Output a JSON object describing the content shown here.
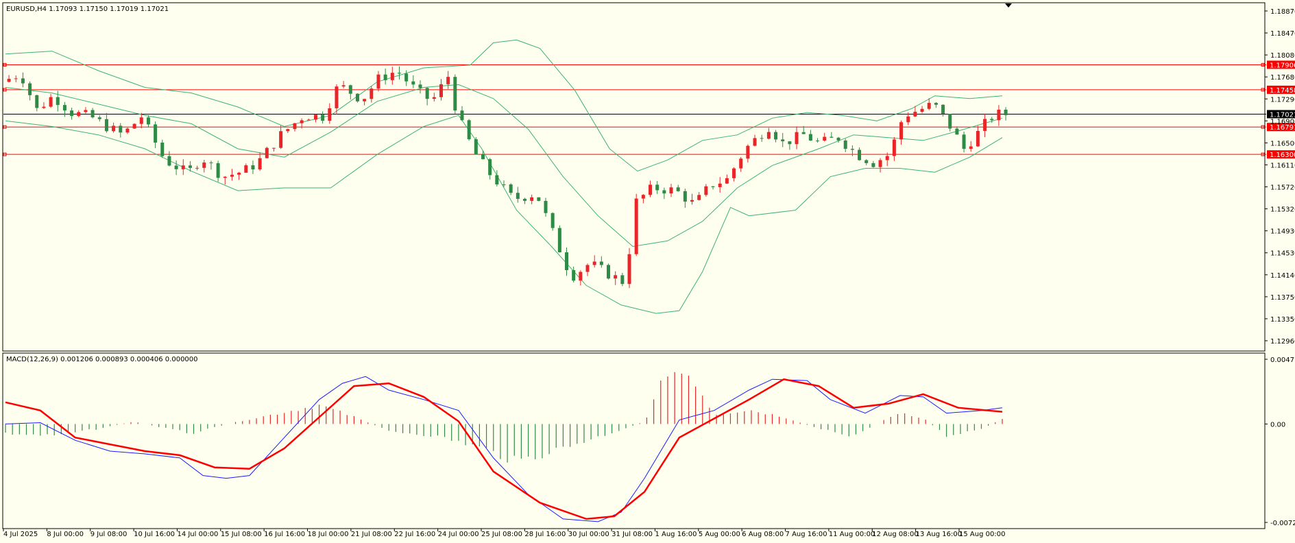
{
  "colors": {
    "background": "#fffff0",
    "frame": "#000000",
    "bull_candle": "#e8262a",
    "bear_candle": "#2e8b46",
    "bollinger": "#3cb371",
    "level_line": "#ff0000",
    "price_line": "#000000",
    "macd_line": "#1a1aff",
    "signal_line": "#ff0000",
    "hist_up": "#e8262a",
    "hist_down": "#2e8b46",
    "label_text": "#ffffff"
  },
  "main_panel": {
    "header": "EURUSD,H4  1.17093 1.17150 1.17019 1.17021",
    "price_axis_ticks": [
      "1.18870",
      "1.18470",
      "1.18080",
      "1.17680",
      "1.17290",
      "1.16900",
      "1.16500",
      "1.16110",
      "1.15720",
      "1.15320",
      "1.14930",
      "1.14530",
      "1.14140",
      "1.13750",
      "1.13350",
      "1.12960"
    ],
    "current_price": "1.17021",
    "levels": [
      "1.17906",
      "1.17458",
      "1.16791",
      "1.16300"
    ]
  },
  "macd_panel": {
    "header": "MACD(12,26,9) 0.001206 0.000893 0.000406 0.000000",
    "axis_ticks": [
      "0.004774",
      "0.00",
      "-0.007257"
    ]
  },
  "time_axis": {
    "labels": [
      "4 Jul 2025",
      "8 Jul 00:00",
      "9 Jul 08:00",
      "10 Jul 16:00",
      "14 Jul 00:00",
      "15 Jul 08:00",
      "16 Jul 16:00",
      "18 Jul 00:00",
      "21 Jul 08:00",
      "22 Jul 16:00",
      "24 Jul 00:00",
      "25 Jul 08:00",
      "28 Jul 16:00",
      "30 Jul 00:00",
      "31 Jul 08:00",
      "1 Aug 16:00",
      "5 Aug 00:00",
      "6 Aug 08:00",
      "7 Aug 16:00",
      "11 Aug 00:00",
      "12 Aug 08:00",
      "13 Aug 16:00",
      "15 Aug 00:00"
    ]
  },
  "chart_data": {
    "type": "candlestick",
    "symbol": "EURUSD",
    "timeframe": "H4",
    "price_range": [
      1.1296,
      1.1887
    ],
    "macd_range": [
      -0.007257,
      0.004774
    ],
    "close_path": [
      {
        "x": 0,
        "y": 1.176
      },
      {
        "x": 8,
        "y": 1.1775
      },
      {
        "x": 15,
        "y": 1.171
      },
      {
        "x": 22,
        "y": 1.1735
      },
      {
        "x": 30,
        "y": 1.1705
      },
      {
        "x": 38,
        "y": 1.1698
      },
      {
        "x": 45,
        "y": 1.168
      },
      {
        "x": 52,
        "y": 1.1665
      },
      {
        "x": 60,
        "y": 1.1698
      },
      {
        "x": 70,
        "y": 1.162
      },
      {
        "x": 80,
        "y": 1.1596
      },
      {
        "x": 86,
        "y": 1.1625
      },
      {
        "x": 95,
        "y": 1.159
      },
      {
        "x": 104,
        "y": 1.16
      },
      {
        "x": 110,
        "y": 1.1615
      },
      {
        "x": 120,
        "y": 1.1665
      },
      {
        "x": 130,
        "y": 1.17
      },
      {
        "x": 138,
        "y": 1.1698
      },
      {
        "x": 145,
        "y": 1.1755
      },
      {
        "x": 155,
        "y": 1.1728
      },
      {
        "x": 162,
        "y": 1.1765
      },
      {
        "x": 170,
        "y": 1.178
      },
      {
        "x": 178,
        "y": 1.1745
      },
      {
        "x": 185,
        "y": 1.1725
      },
      {
        "x": 192,
        "y": 1.177
      },
      {
        "x": 196,
        "y": 1.17
      },
      {
        "x": 203,
        "y": 1.1635
      },
      {
        "x": 210,
        "y": 1.1595
      },
      {
        "x": 220,
        "y": 1.155
      },
      {
        "x": 230,
        "y": 1.156
      },
      {
        "x": 238,
        "y": 1.148
      },
      {
        "x": 245,
        "y": 1.141
      },
      {
        "x": 253,
        "y": 1.1435
      },
      {
        "x": 260,
        "y": 1.1418
      },
      {
        "x": 268,
        "y": 1.14
      },
      {
        "x": 273,
        "y": 1.1545
      },
      {
        "x": 280,
        "y": 1.157
      },
      {
        "x": 290,
        "y": 1.1565
      },
      {
        "x": 298,
        "y": 1.154
      },
      {
        "x": 305,
        "y": 1.1575
      },
      {
        "x": 312,
        "y": 1.1585
      },
      {
        "x": 320,
        "y": 1.164
      },
      {
        "x": 330,
        "y": 1.168
      },
      {
        "x": 336,
        "y": 1.165
      },
      {
        "x": 345,
        "y": 1.1665
      },
      {
        "x": 352,
        "y": 1.165
      },
      {
        "x": 360,
        "y": 1.166
      },
      {
        "x": 368,
        "y": 1.163
      },
      {
        "x": 375,
        "y": 1.1615
      },
      {
        "x": 382,
        "y": 1.163
      },
      {
        "x": 388,
        "y": 1.17
      },
      {
        "x": 395,
        "y": 1.171
      },
      {
        "x": 401,
        "y": 1.172
      },
      {
        "x": 409,
        "y": 1.1675
      },
      {
        "x": 414,
        "y": 1.164
      },
      {
        "x": 420,
        "y": 1.1668
      },
      {
        "x": 425,
        "y": 1.1695
      },
      {
        "x": 429,
        "y": 1.1702
      }
    ],
    "bollinger_upper": [
      {
        "x": 0,
        "y": 1.181
      },
      {
        "x": 20,
        "y": 1.1815
      },
      {
        "x": 40,
        "y": 1.178
      },
      {
        "x": 60,
        "y": 1.175
      },
      {
        "x": 80,
        "y": 1.174
      },
      {
        "x": 100,
        "y": 1.1715
      },
      {
        "x": 120,
        "y": 1.168
      },
      {
        "x": 140,
        "y": 1.17
      },
      {
        "x": 160,
        "y": 1.176
      },
      {
        "x": 180,
        "y": 1.1785
      },
      {
        "x": 200,
        "y": 1.179
      },
      {
        "x": 210,
        "y": 1.183
      },
      {
        "x": 220,
        "y": 1.1835
      },
      {
        "x": 230,
        "y": 1.182
      },
      {
        "x": 245,
        "y": 1.1745
      },
      {
        "x": 260,
        "y": 1.164
      },
      {
        "x": 272,
        "y": 1.16
      },
      {
        "x": 285,
        "y": 1.162
      },
      {
        "x": 300,
        "y": 1.1655
      },
      {
        "x": 315,
        "y": 1.1665
      },
      {
        "x": 330,
        "y": 1.1695
      },
      {
        "x": 345,
        "y": 1.1705
      },
      {
        "x": 360,
        "y": 1.17
      },
      {
        "x": 375,
        "y": 1.169
      },
      {
        "x": 390,
        "y": 1.1712
      },
      {
        "x": 400,
        "y": 1.1735
      },
      {
        "x": 415,
        "y": 1.173
      },
      {
        "x": 429,
        "y": 1.1735
      }
    ],
    "bollinger_middle": [
      {
        "x": 0,
        "y": 1.175
      },
      {
        "x": 20,
        "y": 1.174
      },
      {
        "x": 40,
        "y": 1.172
      },
      {
        "x": 60,
        "y": 1.17
      },
      {
        "x": 80,
        "y": 1.1685
      },
      {
        "x": 100,
        "y": 1.164
      },
      {
        "x": 120,
        "y": 1.1625
      },
      {
        "x": 140,
        "y": 1.167
      },
      {
        "x": 160,
        "y": 1.1725
      },
      {
        "x": 180,
        "y": 1.175
      },
      {
        "x": 195,
        "y": 1.1755
      },
      {
        "x": 210,
        "y": 1.173
      },
      {
        "x": 225,
        "y": 1.1675
      },
      {
        "x": 240,
        "y": 1.159
      },
      {
        "x": 255,
        "y": 1.152
      },
      {
        "x": 270,
        "y": 1.1465
      },
      {
        "x": 285,
        "y": 1.1475
      },
      {
        "x": 300,
        "y": 1.151
      },
      {
        "x": 315,
        "y": 1.157
      },
      {
        "x": 330,
        "y": 1.161
      },
      {
        "x": 350,
        "y": 1.164
      },
      {
        "x": 365,
        "y": 1.1665
      },
      {
        "x": 380,
        "y": 1.166
      },
      {
        "x": 395,
        "y": 1.1655
      },
      {
        "x": 410,
        "y": 1.1672
      },
      {
        "x": 429,
        "y": 1.1695
      }
    ],
    "bollinger_lower": [
      {
        "x": 0,
        "y": 1.169
      },
      {
        "x": 20,
        "y": 1.168
      },
      {
        "x": 40,
        "y": 1.1665
      },
      {
        "x": 60,
        "y": 1.164
      },
      {
        "x": 80,
        "y": 1.16
      },
      {
        "x": 100,
        "y": 1.1565
      },
      {
        "x": 120,
        "y": 1.157
      },
      {
        "x": 140,
        "y": 1.157
      },
      {
        "x": 160,
        "y": 1.163
      },
      {
        "x": 180,
        "y": 1.168
      },
      {
        "x": 195,
        "y": 1.17
      },
      {
        "x": 205,
        "y": 1.164
      },
      {
        "x": 220,
        "y": 1.153
      },
      {
        "x": 235,
        "y": 1.1465
      },
      {
        "x": 250,
        "y": 1.1395
      },
      {
        "x": 265,
        "y": 1.136
      },
      {
        "x": 280,
        "y": 1.1345
      },
      {
        "x": 290,
        "y": 1.135
      },
      {
        "x": 300,
        "y": 1.142
      },
      {
        "x": 312,
        "y": 1.1535
      },
      {
        "x": 320,
        "y": 1.152
      },
      {
        "x": 340,
        "y": 1.153
      },
      {
        "x": 355,
        "y": 1.159
      },
      {
        "x": 370,
        "y": 1.1605
      },
      {
        "x": 385,
        "y": 1.1605
      },
      {
        "x": 400,
        "y": 1.1598
      },
      {
        "x": 415,
        "y": 1.1625
      },
      {
        "x": 429,
        "y": 1.166
      }
    ],
    "macd_line": [
      {
        "x": 0,
        "y": 0.0
      },
      {
        "x": 15,
        "y": 0.0001
      },
      {
        "x": 30,
        "y": -0.0012
      },
      {
        "x": 45,
        "y": -0.002
      },
      {
        "x": 60,
        "y": -0.0022
      },
      {
        "x": 75,
        "y": -0.0025
      },
      {
        "x": 85,
        "y": -0.0038
      },
      {
        "x": 95,
        "y": -0.004
      },
      {
        "x": 105,
        "y": -0.0038
      },
      {
        "x": 120,
        "y": -0.001
      },
      {
        "x": 135,
        "y": 0.0018
      },
      {
        "x": 145,
        "y": 0.003
      },
      {
        "x": 155,
        "y": 0.0035
      },
      {
        "x": 165,
        "y": 0.0025
      },
      {
        "x": 180,
        "y": 0.0018
      },
      {
        "x": 195,
        "y": 0.001
      },
      {
        "x": 210,
        "y": -0.0025
      },
      {
        "x": 225,
        "y": -0.0052
      },
      {
        "x": 240,
        "y": -0.007
      },
      {
        "x": 255,
        "y": -0.0072
      },
      {
        "x": 265,
        "y": -0.0065
      },
      {
        "x": 275,
        "y": -0.004
      },
      {
        "x": 290,
        "y": 0.0003
      },
      {
        "x": 305,
        "y": 0.001
      },
      {
        "x": 320,
        "y": 0.0025
      },
      {
        "x": 330,
        "y": 0.0033
      },
      {
        "x": 345,
        "y": 0.0032
      },
      {
        "x": 355,
        "y": 0.0018
      },
      {
        "x": 370,
        "y": 0.0008
      },
      {
        "x": 385,
        "y": 0.0021
      },
      {
        "x": 395,
        "y": 0.002
      },
      {
        "x": 405,
        "y": 0.0008
      },
      {
        "x": 420,
        "y": 0.001
      },
      {
        "x": 429,
        "y": 0.0012
      }
    ],
    "signal_line": [
      {
        "x": 0,
        "y": 0.0016
      },
      {
        "x": 15,
        "y": 0.001
      },
      {
        "x": 30,
        "y": -0.001
      },
      {
        "x": 45,
        "y": -0.0015
      },
      {
        "x": 60,
        "y": -0.002
      },
      {
        "x": 75,
        "y": -0.0023
      },
      {
        "x": 90,
        "y": -0.0032
      },
      {
        "x": 105,
        "y": -0.0033
      },
      {
        "x": 120,
        "y": -0.0018
      },
      {
        "x": 135,
        "y": 0.0005
      },
      {
        "x": 150,
        "y": 0.0028
      },
      {
        "x": 165,
        "y": 0.003
      },
      {
        "x": 180,
        "y": 0.002
      },
      {
        "x": 195,
        "y": 0.0002
      },
      {
        "x": 210,
        "y": -0.0035
      },
      {
        "x": 230,
        "y": -0.0058
      },
      {
        "x": 250,
        "y": -0.007
      },
      {
        "x": 262,
        "y": -0.0068
      },
      {
        "x": 275,
        "y": -0.005
      },
      {
        "x": 290,
        "y": -0.001
      },
      {
        "x": 305,
        "y": 0.0004
      },
      {
        "x": 320,
        "y": 0.0018
      },
      {
        "x": 335,
        "y": 0.0033
      },
      {
        "x": 350,
        "y": 0.0028
      },
      {
        "x": 365,
        "y": 0.0012
      },
      {
        "x": 380,
        "y": 0.0015
      },
      {
        "x": 395,
        "y": 0.0022
      },
      {
        "x": 410,
        "y": 0.0012
      },
      {
        "x": 429,
        "y": 0.0009
      }
    ],
    "histogram_envelope": [
      {
        "x": 0,
        "y": -0.0008
      },
      {
        "x": 20,
        "y": -0.001
      },
      {
        "x": 40,
        "y": -0.0004
      },
      {
        "x": 55,
        "y": 0.0002
      },
      {
        "x": 80,
        "y": -0.0008
      },
      {
        "x": 100,
        "y": 0.0002
      },
      {
        "x": 120,
        "y": 0.001
      },
      {
        "x": 135,
        "y": 0.0016
      },
      {
        "x": 150,
        "y": 0.0006
      },
      {
        "x": 165,
        "y": -0.0006
      },
      {
        "x": 185,
        "y": -0.001
      },
      {
        "x": 205,
        "y": -0.002
      },
      {
        "x": 220,
        "y": -0.0032
      },
      {
        "x": 240,
        "y": -0.002
      },
      {
        "x": 260,
        "y": -0.0008
      },
      {
        "x": 275,
        "y": 0.0002
      },
      {
        "x": 285,
        "y": 0.0045
      },
      {
        "x": 295,
        "y": 0.0042
      },
      {
        "x": 305,
        "y": 0.0008
      },
      {
        "x": 320,
        "y": 0.0012
      },
      {
        "x": 335,
        "y": 0.0006
      },
      {
        "x": 350,
        "y": -0.0004
      },
      {
        "x": 365,
        "y": -0.001
      },
      {
        "x": 385,
        "y": 0.001
      },
      {
        "x": 395,
        "y": 0.0005
      },
      {
        "x": 405,
        "y": -0.001
      },
      {
        "x": 420,
        "y": -0.0004
      },
      {
        "x": 429,
        "y": 0.0004
      }
    ]
  }
}
